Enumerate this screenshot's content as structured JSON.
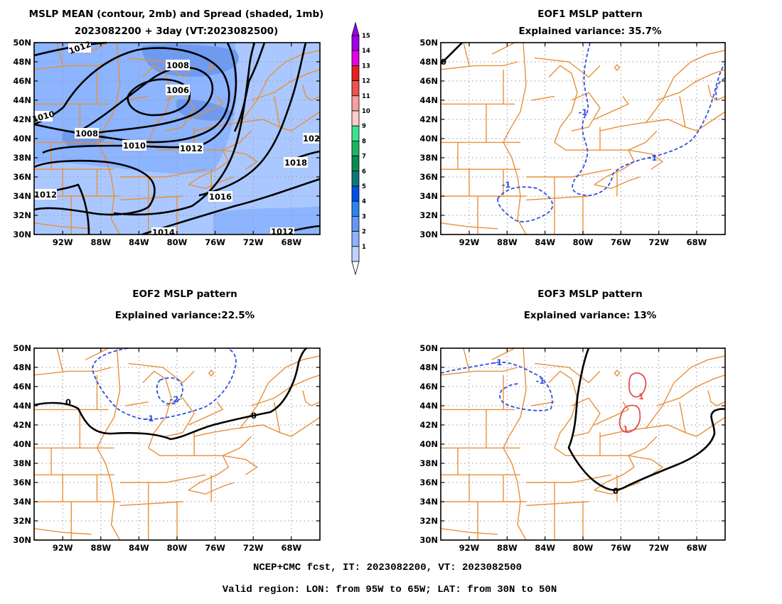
{
  "panels": [
    {
      "id": "mslp-mean-spread",
      "title_line1": "MSLP MEAN (contour, 2mb) and Spread (shaded, 1mb)",
      "title_line2": "2023082200 + 3day (VT:2023082500)",
      "contour_labels": [
        "1012",
        "1008",
        "1006",
        "1010",
        "1008",
        "1010",
        "1012",
        "102",
        "1018",
        "1016",
        "1012",
        "1014",
        "1012"
      ]
    },
    {
      "id": "eof1",
      "title_line1": "EOF1 MSLP pattern",
      "title_line2": "Explained variance: 35.7%",
      "contour_labels": [
        "0",
        "-1",
        "-1",
        "-1"
      ]
    },
    {
      "id": "eof2",
      "title_line1": "EOF2 MSLP pattern",
      "title_line2": "Explained variance:22.5%",
      "contour_labels": [
        "0",
        "-2",
        "-1",
        "0"
      ]
    },
    {
      "id": "eof3",
      "title_line1": "EOF3 MSLP pattern",
      "title_line2": "Explained variance: 13%",
      "contour_labels": [
        "-1",
        "-1",
        "1",
        "1",
        "0"
      ]
    }
  ],
  "axes": {
    "lat_labels": [
      "50N",
      "48N",
      "46N",
      "44N",
      "42N",
      "40N",
      "38N",
      "36N",
      "34N",
      "32N",
      "30N"
    ],
    "lon_labels": [
      "92W",
      "88W",
      "84W",
      "80W",
      "76W",
      "72W",
      "68W"
    ]
  },
  "colorbar": {
    "levels": [
      "15",
      "14",
      "13",
      "12",
      "11",
      "10",
      "9",
      "8",
      "7",
      "6",
      "5",
      "4",
      "3",
      "2",
      "1"
    ],
    "colors": [
      "#a000e6",
      "#e600e6",
      "#e61e1e",
      "#f05050",
      "#f5a0a0",
      "#ffcdcd",
      "#3ce18c",
      "#1eb464",
      "#0a8c50",
      "#0a7878",
      "#0050e6",
      "#2d82f0",
      "#6496f5",
      "#8cb4ff",
      "#bed2ff"
    ]
  },
  "colors": {
    "shade_light": "#aac8ff",
    "shade_mid": "#8cb4ff",
    "shade_dark": "#6e9bf0",
    "map_lines": "#e8903a",
    "grid": "#999999",
    "neg_contour": "#3050e0",
    "pos_contour": "#e05050"
  },
  "footer": {
    "line1": "NCEP+CMC fcst, IT: 2023082200, VT: 2023082500",
    "line2": "Valid region: LON: from 95W to 65W; LAT: from 30N to 50N"
  }
}
